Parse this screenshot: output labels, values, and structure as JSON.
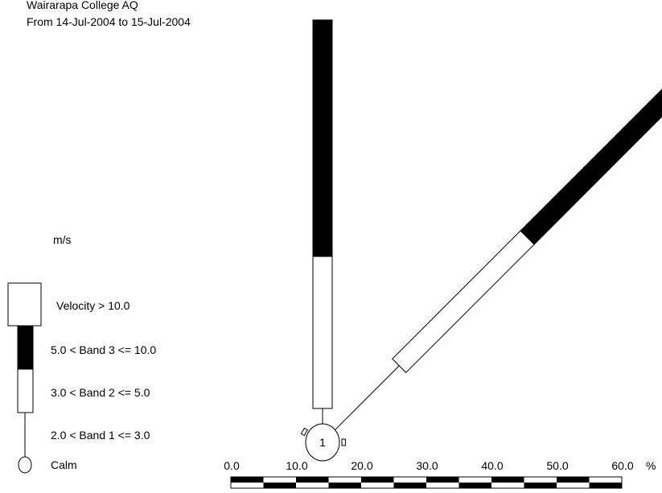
{
  "header": {
    "site": "Wairarapa College AQ",
    "period": "From 14-Jul-2004 to 15-Jul-2004"
  },
  "legend": {
    "unit": "m/s",
    "items": [
      {
        "key": "above",
        "label": "Velocity > 10.0"
      },
      {
        "key": "band3",
        "label": "5.0 < Band 3 <= 10.0"
      },
      {
        "key": "band2",
        "label": "3.0 < Band 2 <= 5.0"
      },
      {
        "key": "band1",
        "label": "2.0 < Band 1 <= 3.0"
      },
      {
        "key": "calm",
        "label": "Calm"
      }
    ]
  },
  "colors": {
    "band3": "#000000",
    "band2": "#ffffff",
    "outline": "#000000"
  },
  "chart_data": {
    "type": "wind-rose",
    "title": "Wairarapa College AQ",
    "subtitle": "From 14-Jul-2004 to 15-Jul-2004",
    "calm_label": "1",
    "scale": {
      "unit": "%",
      "ticks": [
        "0.0",
        "10.0",
        "20.0",
        "30.0",
        "40.0",
        "50.0",
        "60.0"
      ],
      "range": [
        0,
        60
      ]
    },
    "directions": [
      {
        "bearing": 0,
        "band1": 2.5,
        "band2": 23.5,
        "band3": 36.5,
        "above": 0
      },
      {
        "bearing": 45,
        "band1": 14,
        "band2": 28,
        "band3": 31.5,
        "above": 0
      },
      {
        "bearing": 300,
        "band1": 0.8,
        "band2": 0,
        "band3": 0,
        "above": 0
      },
      {
        "bearing": 90,
        "band1": 0.8,
        "band2": 0,
        "band3": 0,
        "above": 0
      }
    ]
  }
}
